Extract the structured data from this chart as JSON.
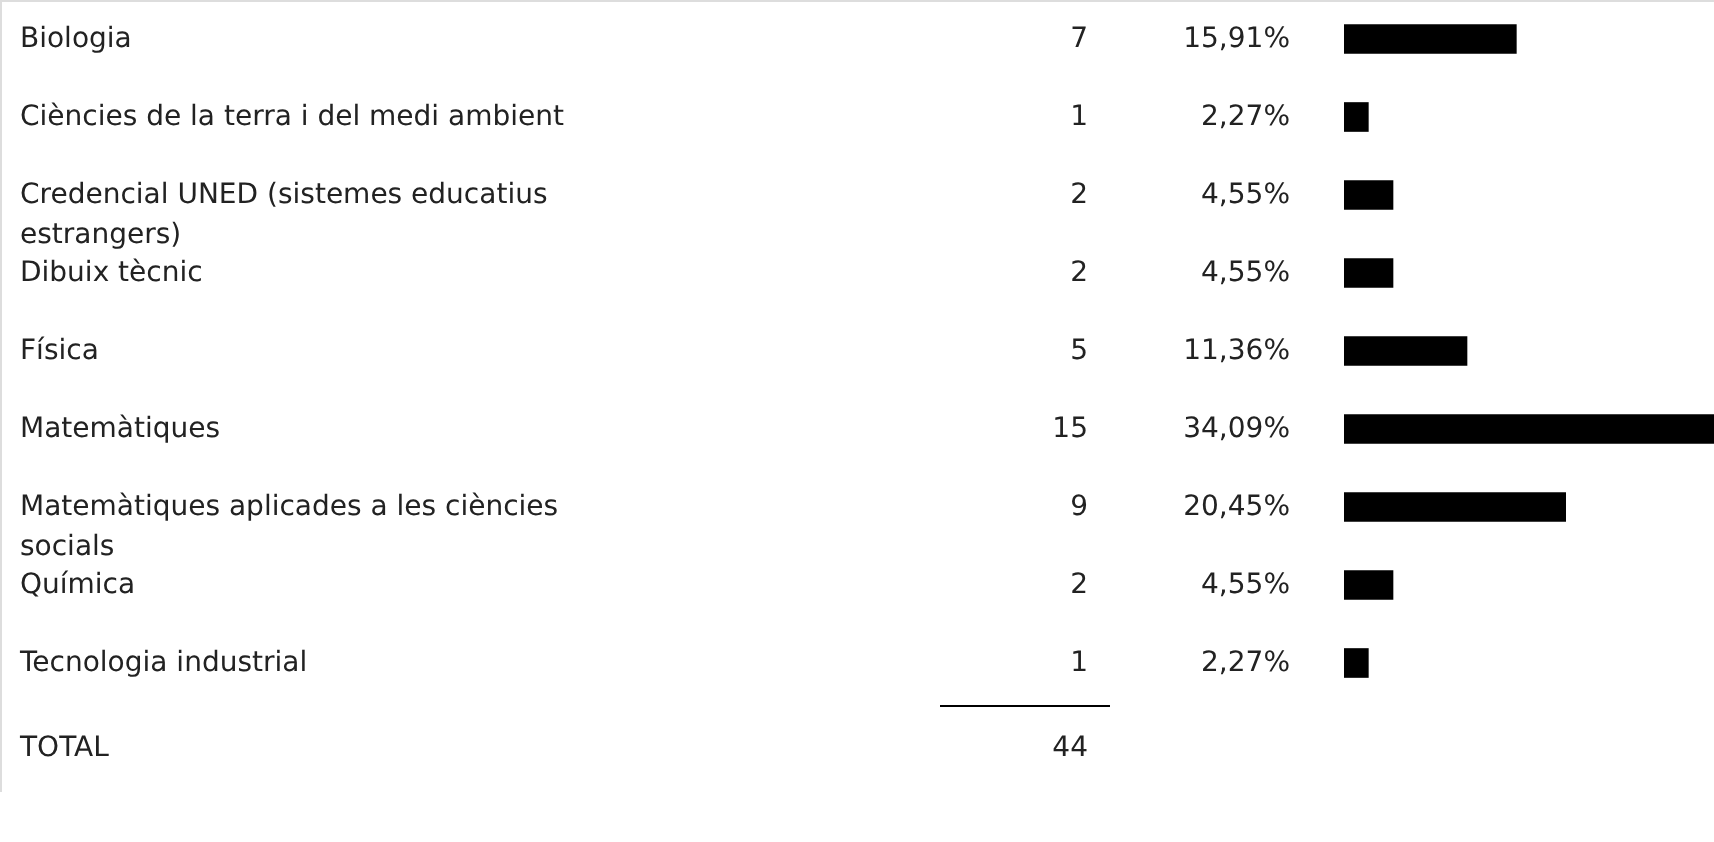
{
  "chart_data": {
    "type": "bar",
    "orientation": "horizontal",
    "categories": [
      "Biologia",
      "Ciències de la terra i del medi ambient",
      "Credencial UNED (sistemes educatius estrangers)",
      "Dibuix tècnic",
      "Física",
      "Matemàtiques",
      "Matemàtiques aplicades a les ciències socials",
      "Química",
      "Tecnologia industrial"
    ],
    "values": [
      7,
      1,
      2,
      2,
      5,
      15,
      9,
      2,
      1
    ],
    "color": "#000000",
    "xlim": [
      0,
      15
    ],
    "data_labels": true,
    "annotations": [
      "15,91%",
      "2,27%",
      "4,55%",
      "4,55%",
      "11,36%",
      "34,09%",
      "20,45%",
      "4,55%",
      "2,27%",
      "TOTAL",
      "44"
    ]
  }
}
